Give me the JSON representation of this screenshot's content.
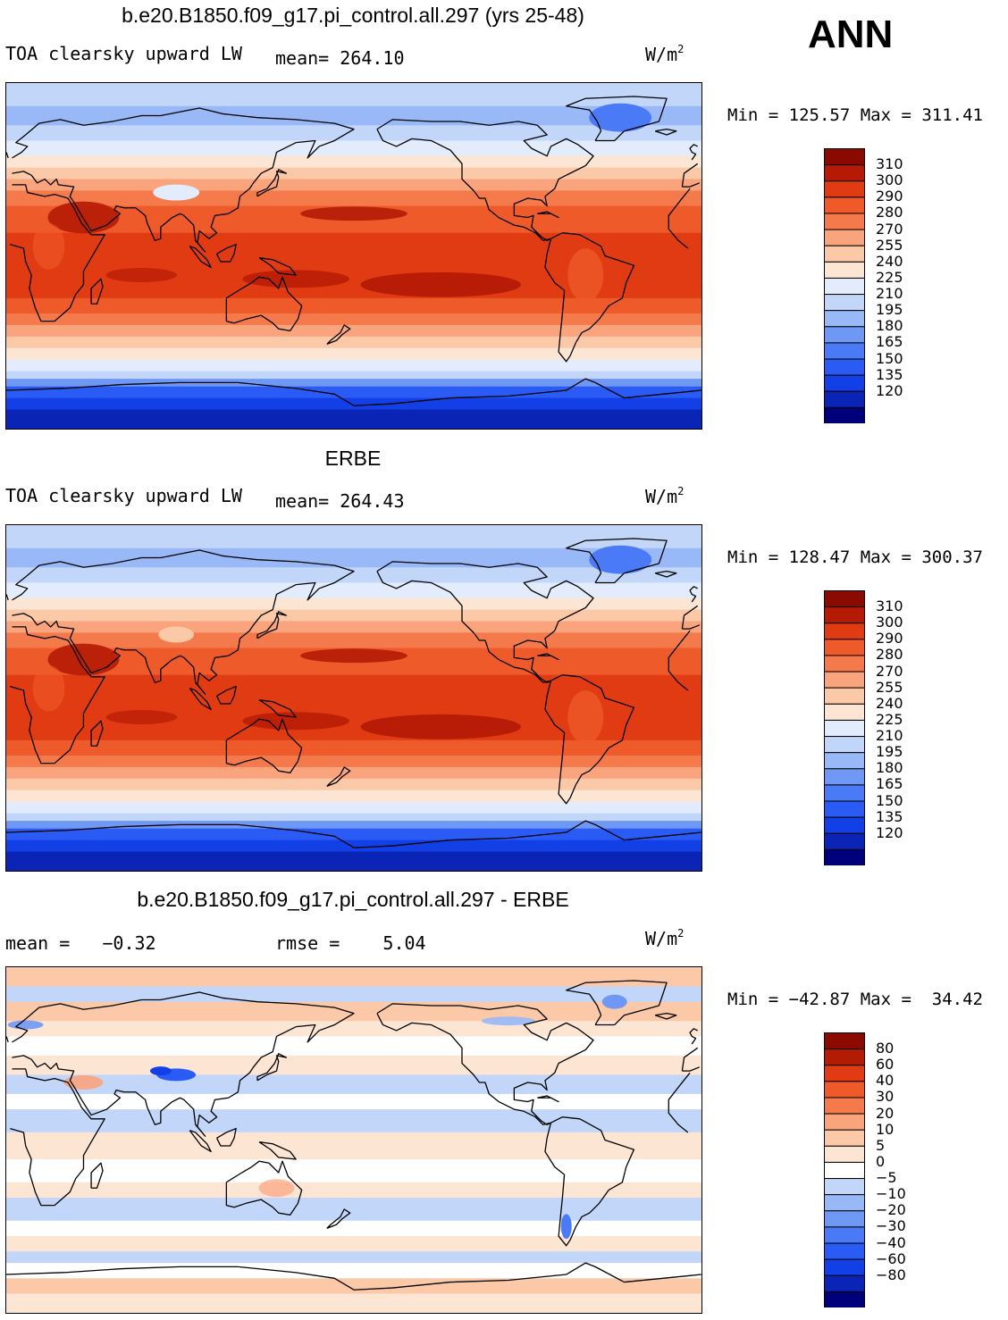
{
  "season": "ANN",
  "colors": {
    "abs_scale": [
      "#00007a",
      "#0a25b5",
      "#1240e6",
      "#2a5cf5",
      "#4a7af5",
      "#6f98f5",
      "#98b8f8",
      "#c2d6fa",
      "#e2ecfd",
      "#fde5d3",
      "#fcc9a8",
      "#f9a47d",
      "#f47a4b",
      "#ee5a2a",
      "#e03b12",
      "#b51a05",
      "#8a0a00"
    ],
    "diff_scale": [
      "#00007a",
      "#0a25b5",
      "#1240e6",
      "#2a5cf5",
      "#4a7af5",
      "#6f98f5",
      "#98b8f8",
      "#c2d6fa",
      "#ffffff",
      "#fde5d3",
      "#fcc9a8",
      "#f9a47d",
      "#f47a4b",
      "#ee5a2a",
      "#e03b12",
      "#b51a05",
      "#8a0a00"
    ],
    "coast": "#000000"
  },
  "panels": [
    {
      "title": "b.e20.B1850.f09_g17.pi_control.all.297 (yrs 25-48)",
      "left": "TOA clearsky upward LW",
      "stat": "mean= 264.10",
      "units": "W/m",
      "units_sup": "2",
      "minmax": "Min = 125.57 Max = 311.41",
      "levels": [
        "310",
        "300",
        "290",
        "280",
        "270",
        "255",
        "240",
        "225",
        "210",
        "195",
        "180",
        "165",
        "150",
        "135",
        "120"
      ],
      "kind": "abs"
    },
    {
      "title": "ERBE",
      "left": "TOA clearsky upward LW",
      "stat": "mean= 264.43",
      "units": "W/m",
      "units_sup": "2",
      "minmax": "Min = 128.47 Max = 300.37",
      "levels": [
        "310",
        "300",
        "290",
        "280",
        "270",
        "255",
        "240",
        "225",
        "210",
        "195",
        "180",
        "165",
        "150",
        "135",
        "120"
      ],
      "kind": "abs"
    },
    {
      "title": "b.e20.B1850.f09_g17.pi_control.all.297 - ERBE",
      "left": "mean =   −0.32",
      "stat": "rmse =    5.04",
      "units": "W/m",
      "units_sup": "2",
      "minmax": "Min = −42.87 Max =  34.42",
      "levels": [
        "80",
        "60",
        "40",
        "30",
        "20",
        "10",
        "5",
        "0",
        "−5",
        "−10",
        "−20",
        "−30",
        "−40",
        "−60",
        "−80"
      ],
      "kind": "diff"
    }
  ]
}
